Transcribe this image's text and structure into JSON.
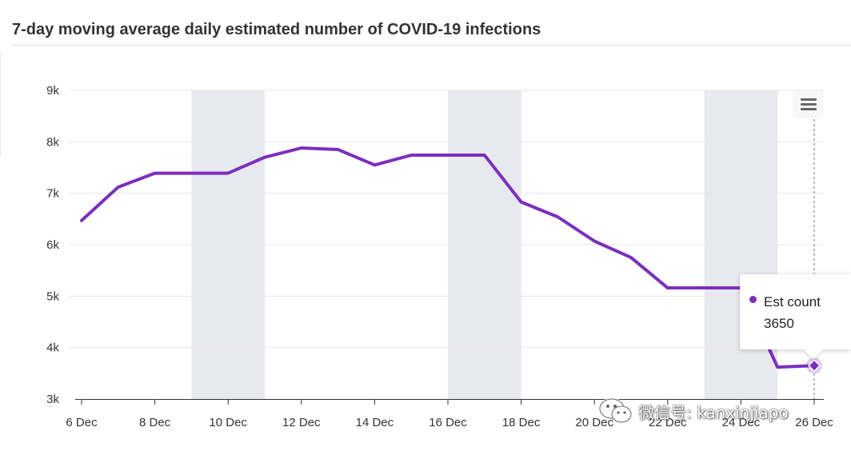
{
  "header": {
    "title": "7-day moving average daily estimated number of COVID-19 infections"
  },
  "chart_data": {
    "type": "line",
    "title": "7-day moving average daily estimated number of COVID-19 infections",
    "xlabel": "",
    "ylabel": "",
    "ylim": [
      3000,
      9000
    ],
    "yticks": [
      3000,
      4000,
      5000,
      6000,
      7000,
      8000,
      9000
    ],
    "ytick_labels": [
      "3k",
      "4k",
      "5k",
      "6k",
      "7k",
      "8k",
      "9k"
    ],
    "x_start_day": 6,
    "xtick_days": [
      6,
      8,
      10,
      12,
      14,
      16,
      18,
      20,
      22,
      24,
      26
    ],
    "xtick_labels": [
      "6 Dec",
      "8 Dec",
      "10 Dec",
      "12 Dec",
      "14 Dec",
      "16 Dec",
      "18 Dec",
      "20 Dec",
      "22 Dec",
      "24 Dec",
      "26 Dec"
    ],
    "grid": true,
    "shaded_bands": [
      [
        9,
        11
      ],
      [
        16,
        18
      ],
      [
        23,
        25
      ]
    ],
    "series": [
      {
        "name": "Est count",
        "color": "#7b2fbe",
        "x_days": [
          6,
          7,
          8,
          9,
          10,
          11,
          12,
          13,
          14,
          15,
          16,
          17,
          18,
          19,
          20,
          21,
          22,
          23,
          24,
          25,
          26
        ],
        "values": [
          6470,
          7120,
          7390,
          7390,
          7390,
          7700,
          7880,
          7850,
          7550,
          7740,
          7740,
          7740,
          6830,
          6540,
          6070,
          5750,
          5160,
          5160,
          5160,
          3620,
          3650
        ]
      }
    ],
    "tooltip": {
      "series": "Est count",
      "value": "3650",
      "x_day": 26
    }
  },
  "tooltip": {
    "label": "Est count",
    "value": "3650"
  },
  "watermark": {
    "text": "微信号: kanxinjiapo",
    "icon": "wechat-icon"
  },
  "menu": {
    "icon": "hamburger-menu-icon"
  }
}
